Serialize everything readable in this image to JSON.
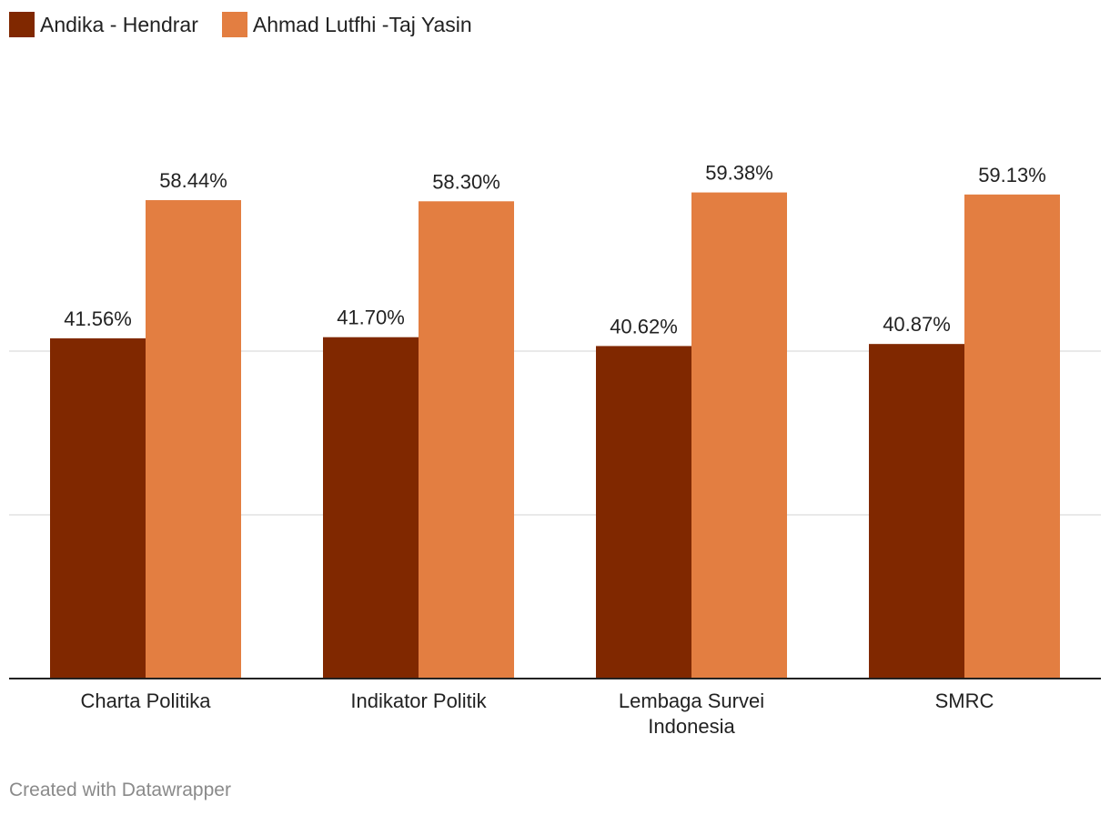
{
  "colors": {
    "series1": "#802800",
    "series2": "#e37e41",
    "grid": "#e2e2e2",
    "axis": "#222222"
  },
  "legend": [
    {
      "label": "Andika - Hendrar"
    },
    {
      "label": "Ahmad Lutfhi -Taj Yasin"
    }
  ],
  "credit": "Created with Datawrapper",
  "chart_data": {
    "type": "bar",
    "categories": [
      [
        "Charta Politika"
      ],
      [
        "Indikator Politik"
      ],
      [
        "Lembaga Survei",
        "Indonesia"
      ],
      [
        "SMRC"
      ]
    ],
    "series": [
      {
        "name": "Andika - Hendrar",
        "values": [
          41.56,
          41.7,
          40.62,
          40.87
        ],
        "labels": [
          "41.56%",
          "41.70%",
          "40.62%",
          "40.87%"
        ]
      },
      {
        "name": "Ahmad Lutfhi -Taj Yasin",
        "values": [
          58.44,
          58.3,
          59.38,
          59.13
        ],
        "labels": [
          "58.44%",
          "58.30%",
          "59.38%",
          "59.13%"
        ]
      }
    ],
    "ylim": [
      0,
      70
    ],
    "gridlines": [
      20,
      40
    ],
    "legend_position": "top-left"
  }
}
